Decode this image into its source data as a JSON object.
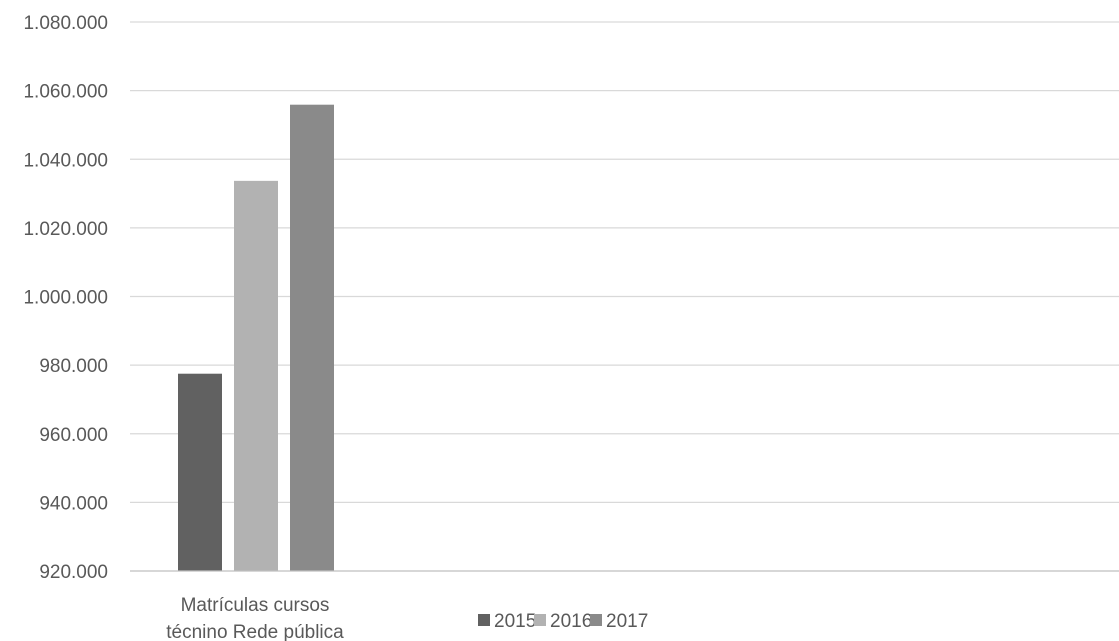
{
  "chart_data": {
    "type": "bar",
    "title": "",
    "xlabel": "",
    "ylabel": "",
    "categories": [
      "Matrículas cursos técnino Rede pública"
    ],
    "category_lines": [
      "Matrículas cursos",
      "técnino Rede pública"
    ],
    "series": [
      {
        "name": "2015",
        "values": [
          977500
        ],
        "color": "#616161"
      },
      {
        "name": "2016",
        "values": [
          1033700
        ],
        "color": "#b2b2b2"
      },
      {
        "name": "2017",
        "values": [
          1055900
        ],
        "color": "#8a8a8a"
      }
    ],
    "ylim": [
      920000,
      1080000
    ],
    "yticks": [
      {
        "value": 920000,
        "label": "920.000"
      },
      {
        "value": 940000,
        "label": "940.000"
      },
      {
        "value": 960000,
        "label": "960.000"
      },
      {
        "value": 980000,
        "label": "980.000"
      },
      {
        "value": 1000000,
        "label": "1.000.000"
      },
      {
        "value": 1020000,
        "label": "1.020.000"
      },
      {
        "value": 1040000,
        "label": "1.040.000"
      },
      {
        "value": 1060000,
        "label": "1.060.000"
      },
      {
        "value": 1080000,
        "label": "1.080.000"
      }
    ],
    "grid": true,
    "legend_position": "bottom"
  }
}
